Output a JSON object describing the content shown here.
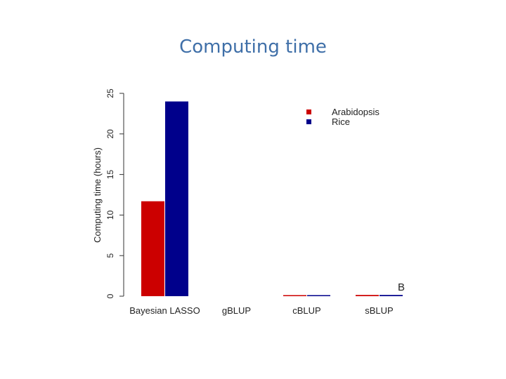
{
  "slide": {
    "title": "Computing time"
  },
  "chart_data": {
    "type": "bar",
    "ylabel": "Computing time (hours)",
    "ylim": [
      0,
      25
    ],
    "yticks": [
      "0",
      "5",
      "10",
      "15",
      "20",
      "25"
    ],
    "categories": [
      "Bayesian LASSO",
      "gBLUP",
      "cBLUP",
      "sBLUP"
    ],
    "series": [
      {
        "name": "Arabidopsis",
        "color": "#cc0000",
        "values": [
          11.7,
          0,
          0.1,
          0.15
        ]
      },
      {
        "name": "Rice",
        "color": "#00008b",
        "values": [
          24.0,
          0,
          0.1,
          0.15
        ]
      }
    ],
    "legend_position": "top-right",
    "panel_label": "B",
    "grid": false
  }
}
